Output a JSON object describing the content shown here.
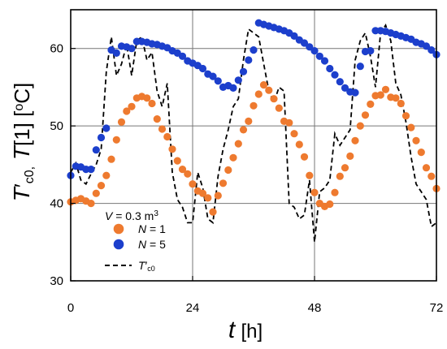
{
  "chart_data": {
    "type": "scatter",
    "xlabel_symbol": "t",
    "xlabel_unit": "[h]",
    "ylabel_parts": [
      "T",
      "′",
      "c0,",
      " T",
      "[1]",
      "  [",
      "o",
      "C]"
    ],
    "xlim": [
      0,
      72
    ],
    "ylim": [
      30,
      65
    ],
    "x_ticks": [
      0,
      24,
      48,
      72
    ],
    "y_ticks": [
      30,
      40,
      50,
      60
    ],
    "grid": true,
    "legend_position": "lower-left",
    "legend_title_parts": [
      "V",
      " = 0.3 m",
      "3"
    ],
    "series": [
      {
        "name": "N = 1",
        "name_var": "N",
        "name_rest": " = 1",
        "kind": "markers",
        "color": "#ee7a2f",
        "x": [
          0,
          1,
          2,
          3,
          4,
          5,
          6,
          7,
          8,
          9,
          10,
          11,
          12,
          13,
          14,
          15,
          16,
          17,
          18,
          19,
          20,
          21,
          22,
          23,
          24,
          25,
          26,
          27,
          28,
          29,
          30,
          31,
          32,
          33,
          34,
          35,
          36,
          37,
          38,
          39,
          40,
          41,
          42,
          43,
          44,
          45,
          46,
          47,
          48,
          49,
          50,
          51,
          52,
          53,
          54,
          55,
          56,
          57,
          58,
          59,
          60,
          61,
          62,
          63,
          64,
          65,
          66,
          67,
          68,
          69,
          70,
          71,
          72
        ],
        "y": [
          40.2,
          40.4,
          40.6,
          40.3,
          40.0,
          41.3,
          42.3,
          43.6,
          45.7,
          48.2,
          50.5,
          51.9,
          52.5,
          53.6,
          53.8,
          53.6,
          52.9,
          50.9,
          49.6,
          48.6,
          47.0,
          45.5,
          44.4,
          43.8,
          42.5,
          41.6,
          41.3,
          40.7,
          38.9,
          41.0,
          42.6,
          44.3,
          45.9,
          47.7,
          49.5,
          50.6,
          52.6,
          54.1,
          55.3,
          54.6,
          53.5,
          52.3,
          50.6,
          50.4,
          49.0,
          47.6,
          46.0,
          43.6,
          41.4,
          40.0,
          39.6,
          39.9,
          41.4,
          43.5,
          44.6,
          46.1,
          48.1,
          50.0,
          51.4,
          52.8,
          53.9,
          54.0,
          54.7,
          53.7,
          53.6,
          52.9,
          51.3,
          49.8,
          48.1,
          46.6,
          44.6,
          43.5,
          41.9
        ]
      },
      {
        "name": "N = 5",
        "name_var": "N",
        "name_rest": " = 5",
        "kind": "markers",
        "color": "#1c3fcc",
        "x": [
          0,
          1,
          2,
          3,
          4,
          5,
          6,
          7,
          8,
          9,
          10,
          11,
          12,
          13,
          14,
          15,
          16,
          17,
          18,
          19,
          20,
          21,
          22,
          23,
          24,
          25,
          26,
          27,
          28,
          29,
          30,
          31,
          32,
          33,
          34,
          35,
          36,
          37,
          38,
          39,
          40,
          41,
          42,
          43,
          44,
          45,
          46,
          47,
          48,
          49,
          50,
          51,
          52,
          53,
          54,
          55,
          56,
          57,
          58,
          59,
          60,
          61,
          62,
          63,
          64,
          65,
          66,
          67,
          68,
          69,
          70,
          71,
          72
        ],
        "y": [
          43.6,
          44.8,
          44.7,
          44.4,
          44.4,
          46.9,
          48.5,
          49.7,
          59.8,
          59.4,
          60.3,
          60.2,
          60.0,
          60.9,
          60.9,
          60.8,
          60.6,
          60.5,
          60.3,
          60.1,
          59.7,
          59.4,
          59.0,
          58.4,
          58.1,
          57.8,
          57.4,
          56.7,
          56.4,
          55.8,
          55.0,
          55.2,
          54.9,
          55.9,
          57.0,
          58.5,
          59.8,
          63.3,
          63.1,
          62.9,
          62.7,
          62.5,
          62.3,
          62.0,
          61.6,
          61.1,
          60.7,
          60.2,
          59.7,
          59.0,
          58.4,
          57.4,
          56.6,
          55.7,
          54.9,
          54.4,
          54.3,
          57.7,
          59.6,
          59.7,
          62.3,
          62.3,
          62.2,
          62.0,
          61.8,
          61.6,
          61.4,
          61.2,
          60.8,
          60.6,
          60.3,
          59.8,
          59.2
        ]
      },
      {
        "name": "T′c0",
        "name_var": "T",
        "name_rest": "′",
        "name_sub": "c0",
        "kind": "dashed-line",
        "color": "#000000",
        "x": [
          0,
          1,
          2,
          3,
          4,
          5,
          6,
          7,
          8,
          9,
          10,
          11,
          12,
          13,
          14,
          15,
          16,
          17,
          18,
          19,
          20,
          21,
          22,
          23,
          24,
          25,
          26,
          27,
          28,
          29,
          30,
          31,
          32,
          33,
          34,
          35,
          36,
          37,
          38,
          39,
          40,
          41,
          42,
          43,
          44,
          45,
          46,
          47,
          48,
          49,
          50,
          51,
          52,
          53,
          54,
          55,
          56,
          57,
          58,
          59,
          60,
          61,
          62,
          63,
          64,
          65,
          66,
          67,
          68,
          69,
          70,
          71,
          72
        ],
        "y": [
          44.0,
          45.2,
          43.0,
          42.5,
          43.8,
          45.0,
          47.0,
          57.0,
          61.5,
          56.5,
          58.0,
          60.5,
          56.5,
          61.0,
          61.5,
          58.5,
          59.5,
          54.5,
          52.5,
          55.5,
          44.0,
          40.5,
          39.5,
          37.5,
          37.5,
          44.0,
          42.0,
          38.0,
          37.5,
          43.5,
          47.0,
          49.5,
          52.5,
          53.5,
          58.5,
          62.5,
          62.0,
          61.5,
          58.0,
          54.5,
          53.0,
          55.0,
          54.5,
          40.0,
          39.5,
          38.0,
          38.5,
          43.0,
          35.0,
          41.5,
          42.0,
          43.0,
          49.0,
          47.5,
          48.5,
          49.5,
          58.5,
          61.0,
          62.0,
          59.0,
          55.0,
          62.0,
          63.0,
          61.0,
          55.5,
          54.0,
          50.5,
          46.0,
          42.5,
          41.5,
          40.5,
          37.0,
          37.5
        ]
      }
    ]
  }
}
